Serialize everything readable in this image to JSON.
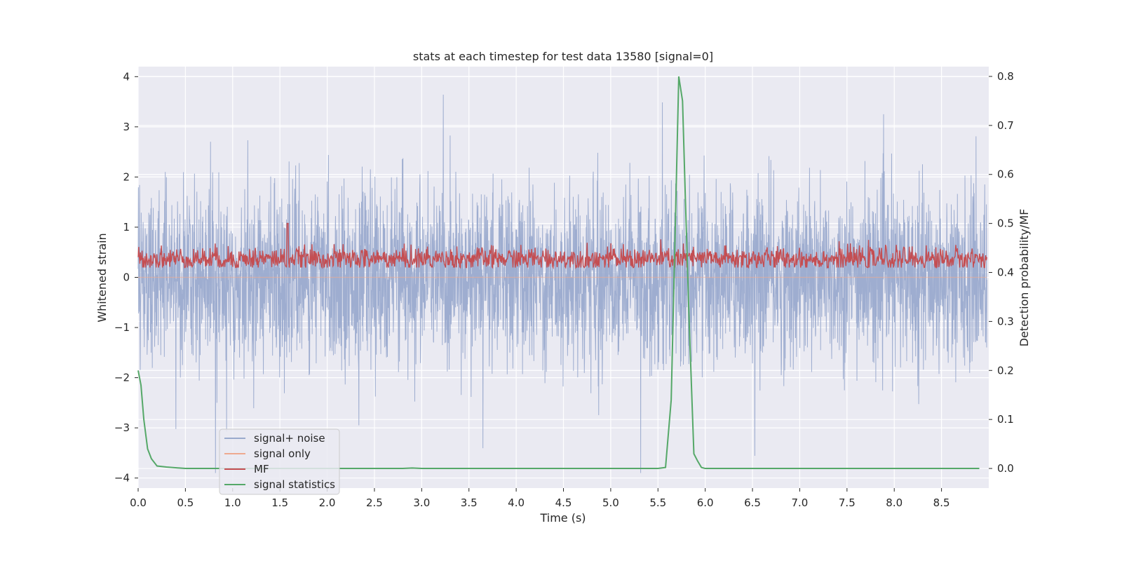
{
  "chart_data": {
    "type": "line",
    "title": "stats at each timestep for test data 13580 [signal=0]",
    "xlabel": "Time (s)",
    "ylabel": "Whitened strain",
    "ylabel_right": "Detection probability/MF",
    "xlim": [
      0.0,
      9.0
    ],
    "ylim": [
      -4.2,
      4.2
    ],
    "ylim_right": [
      -0.04,
      0.82
    ],
    "grid": true,
    "legend_position": "lower-left",
    "x_ticks": [
      "0.0",
      "0.5",
      "1.0",
      "1.5",
      "2.0",
      "2.5",
      "3.0",
      "3.5",
      "4.0",
      "4.5",
      "5.0",
      "5.5",
      "6.0",
      "6.5",
      "7.0",
      "7.5",
      "8.0",
      "8.5"
    ],
    "y_ticks": [
      "4",
      "3",
      "2",
      "1",
      "0",
      "−1",
      "−2",
      "−3",
      "−4"
    ],
    "y_ticks_right": [
      "0.8",
      "0.7",
      "0.6",
      "0.5",
      "0.4",
      "0.3",
      "0.2",
      "0.1",
      "0.0"
    ],
    "series": [
      {
        "name": "signal+ noise",
        "axis": "left",
        "color": "#9aaacd",
        "description": "dense whitened-strain noise, roughly -2 to 2 with spikes",
        "envelope": {
          "low": -3.9,
          "high": 3.85
        }
      },
      {
        "name": "signal only",
        "axis": "left",
        "color": "#eea98f",
        "values": "flat at 0 (no injected signal)"
      },
      {
        "name": "MF",
        "axis": "right",
        "color": "#c44e52",
        "description": "matched-filter output fluctuating about 0.43, peak near 0.5 at t=1.58"
      },
      {
        "name": "signal statistics",
        "axis": "right",
        "color": "#55a868",
        "x": [
          0.0,
          0.03,
          0.06,
          0.1,
          0.14,
          0.2,
          0.3,
          0.5,
          1.0,
          2.0,
          2.8,
          2.9,
          3.0,
          4.0,
          5.0,
          5.5,
          5.58,
          5.64,
          5.69,
          5.72,
          5.76,
          5.79,
          5.83,
          5.88,
          5.92,
          5.96,
          6.0,
          7.0,
          8.0,
          8.9
        ],
        "values": [
          0.2,
          0.17,
          0.1,
          0.04,
          0.02,
          0.005,
          0.003,
          0.0,
          0.0,
          0.0,
          0.0,
          0.001,
          0.0,
          0.0,
          0.0,
          0.0,
          0.002,
          0.14,
          0.55,
          0.8,
          0.75,
          0.55,
          0.3,
          0.03,
          0.015,
          0.002,
          0.0,
          0.0,
          0.0,
          0.0
        ]
      }
    ]
  }
}
